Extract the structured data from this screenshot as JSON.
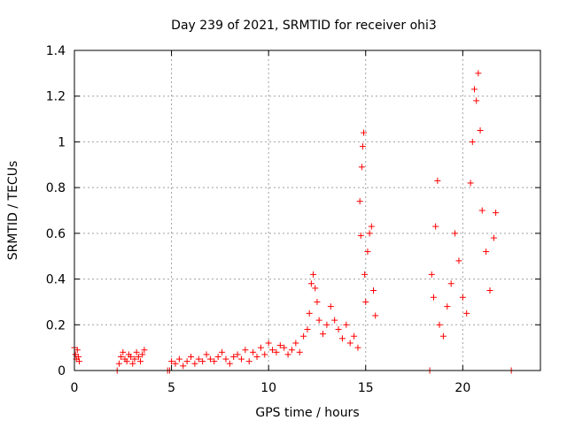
{
  "chart_data": {
    "type": "scatter",
    "title": "Day 239 of 2021, SRMTID for receiver ohi3",
    "xlabel": "GPS time / hours",
    "ylabel": "SRMTID / TECUs",
    "xlim": [
      0,
      24
    ],
    "ylim": [
      0,
      1.4
    ],
    "x_ticks": [
      0,
      5,
      10,
      15,
      20
    ],
    "x_tick_labels": [
      "0",
      "5",
      "10",
      "15",
      "20"
    ],
    "y_ticks": [
      0,
      0.2,
      0.4,
      0.6,
      0.8,
      1.0,
      1.2,
      1.4
    ],
    "y_tick_labels": [
      "0",
      "0.2",
      "0.4",
      "0.6",
      "0.8",
      "1",
      "1.2",
      "1.4"
    ],
    "grid": true,
    "marker": "plus",
    "series": [
      {
        "name": "SRMTID",
        "color": "#ff0000",
        "x": [
          0.0,
          0.05,
          0.1,
          0.15,
          0.2,
          0.25,
          2.2,
          2.3,
          2.4,
          2.5,
          2.6,
          2.7,
          2.8,
          2.9,
          3.0,
          3.1,
          3.2,
          3.3,
          3.4,
          3.5,
          3.6,
          4.8,
          4.9,
          5.0,
          5.2,
          5.4,
          5.6,
          5.8,
          6.0,
          6.2,
          6.4,
          6.6,
          6.8,
          7.0,
          7.2,
          7.4,
          7.6,
          7.8,
          8.0,
          8.2,
          8.4,
          8.6,
          8.8,
          9.0,
          9.2,
          9.4,
          9.6,
          9.8,
          10.0,
          10.2,
          10.4,
          10.6,
          10.8,
          11.0,
          11.2,
          11.4,
          11.6,
          11.8,
          12.0,
          12.1,
          12.2,
          12.3,
          12.4,
          12.5,
          12.6,
          12.8,
          13.0,
          13.2,
          13.4,
          13.6,
          13.8,
          14.0,
          14.2,
          14.4,
          14.6,
          14.7,
          14.75,
          14.8,
          14.85,
          14.9,
          14.95,
          15.0,
          15.1,
          15.2,
          15.3,
          15.4,
          15.5,
          18.3,
          18.4,
          18.5,
          18.6,
          18.7,
          18.8,
          19.0,
          19.2,
          19.4,
          19.6,
          19.8,
          20.0,
          20.2,
          20.4,
          20.5,
          20.6,
          20.7,
          20.8,
          20.9,
          21.0,
          21.2,
          21.4,
          21.6,
          21.7,
          22.5
        ],
        "y": [
          0.1,
          0.07,
          0.05,
          0.09,
          0.06,
          0.04,
          0.0,
          0.03,
          0.06,
          0.08,
          0.05,
          0.04,
          0.07,
          0.06,
          0.03,
          0.05,
          0.08,
          0.06,
          0.04,
          0.07,
          0.09,
          0.0,
          0.0,
          0.04,
          0.03,
          0.05,
          0.02,
          0.04,
          0.06,
          0.03,
          0.05,
          0.04,
          0.07,
          0.05,
          0.04,
          0.06,
          0.08,
          0.05,
          0.03,
          0.06,
          0.07,
          0.05,
          0.09,
          0.04,
          0.08,
          0.06,
          0.1,
          0.07,
          0.12,
          0.09,
          0.08,
          0.11,
          0.1,
          0.07,
          0.09,
          0.12,
          0.08,
          0.15,
          0.18,
          0.25,
          0.38,
          0.42,
          0.36,
          0.3,
          0.22,
          0.16,
          0.2,
          0.28,
          0.22,
          0.18,
          0.14,
          0.2,
          0.12,
          0.15,
          0.1,
          0.74,
          0.59,
          0.89,
          0.98,
          1.04,
          0.42,
          0.3,
          0.52,
          0.6,
          0.63,
          0.35,
          0.24,
          0.0,
          0.42,
          0.32,
          0.63,
          0.83,
          0.2,
          0.15,
          0.28,
          0.38,
          0.6,
          0.48,
          0.32,
          0.25,
          0.82,
          1.0,
          1.23,
          1.18,
          1.3,
          1.05,
          0.7,
          0.52,
          0.35,
          0.58,
          0.69,
          0.0
        ]
      }
    ]
  }
}
